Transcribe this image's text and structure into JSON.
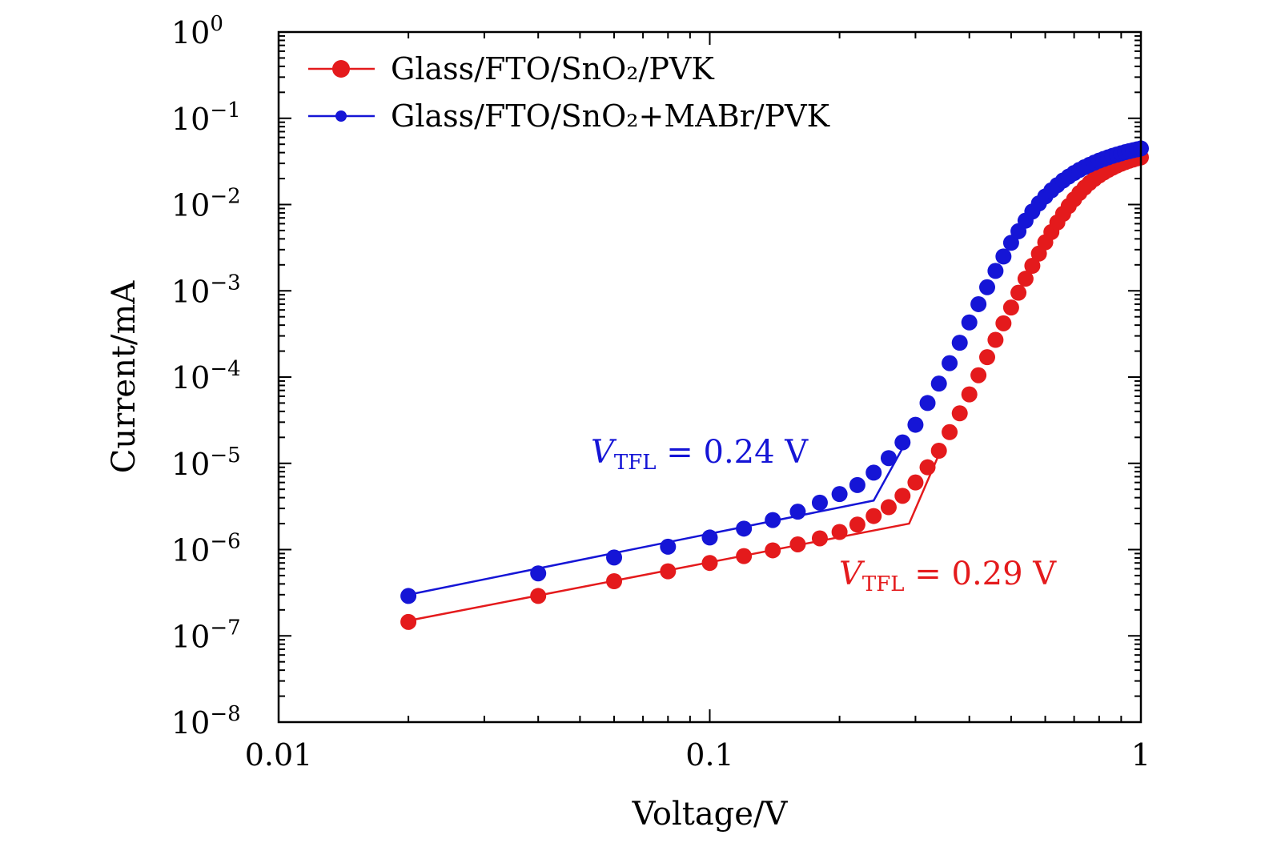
{
  "chart_data": {
    "type": "scatter",
    "xlabel": "Voltage/V",
    "ylabel": "Current/mA",
    "xscale": "log",
    "yscale": "log",
    "xlim": [
      0.01,
      1
    ],
    "ylim": [
      1e-08,
      1
    ],
    "x_tick_labels": [
      "0.01",
      "0.1",
      "1"
    ],
    "y_tick_labels": [
      {
        "base": "10",
        "exp": "0"
      },
      {
        "base": "10",
        "exp": "−1"
      },
      {
        "base": "10",
        "exp": "−2"
      },
      {
        "base": "10",
        "exp": "−3"
      },
      {
        "base": "10",
        "exp": "−4"
      },
      {
        "base": "10",
        "exp": "−5"
      },
      {
        "base": "10",
        "exp": "−6"
      },
      {
        "base": "10",
        "exp": "−7"
      },
      {
        "base": "10",
        "exp": "−8"
      }
    ],
    "legend_position": "top-left",
    "series": [
      {
        "name": "Glass/FTO/SnO₂/PVK",
        "color": "#e41a1c",
        "marker": "circle",
        "x": [
          0.02,
          0.04,
          0.06,
          0.08,
          0.1,
          0.12,
          0.14,
          0.16,
          0.18,
          0.2,
          0.22,
          0.24,
          0.26,
          0.28,
          0.3,
          0.32,
          0.34,
          0.36,
          0.38,
          0.4,
          0.42,
          0.44,
          0.46,
          0.48,
          0.5,
          0.52,
          0.54,
          0.56,
          0.58,
          0.6,
          0.62,
          0.64,
          0.66,
          0.68,
          0.7,
          0.72,
          0.74,
          0.76,
          0.78,
          0.8,
          0.82,
          0.84,
          0.86,
          0.88,
          0.9,
          0.92,
          0.94,
          0.96,
          0.98,
          1.0
        ],
        "y": [
          1.45e-07,
          2.9e-07,
          4.3e-07,
          5.6e-07,
          7e-07,
          8.4e-07,
          9.8e-07,
          1.15e-06,
          1.35e-06,
          1.6e-06,
          1.95e-06,
          2.45e-06,
          3.1e-06,
          4.2e-06,
          6e-06,
          9e-06,
          1.4e-05,
          2.3e-05,
          3.8e-05,
          6.3e-05,
          0.000105,
          0.00017,
          0.00027,
          0.00042,
          0.00064,
          0.00095,
          0.00138,
          0.00195,
          0.0027,
          0.00365,
          0.0048,
          0.0062,
          0.0078,
          0.0096,
          0.0115,
          0.0136,
          0.0157,
          0.0178,
          0.0198,
          0.0217,
          0.0235,
          0.0252,
          0.0268,
          0.0283,
          0.0297,
          0.031,
          0.0322,
          0.0333,
          0.0343,
          0.0352
        ]
      },
      {
        "name": "Glass/FTO/SnO₂+MABr/PVK",
        "color": "#1515d6",
        "marker": "circle",
        "x": [
          0.02,
          0.04,
          0.06,
          0.08,
          0.1,
          0.12,
          0.14,
          0.16,
          0.18,
          0.2,
          0.22,
          0.24,
          0.26,
          0.28,
          0.3,
          0.32,
          0.34,
          0.36,
          0.38,
          0.4,
          0.42,
          0.44,
          0.46,
          0.48,
          0.5,
          0.52,
          0.54,
          0.56,
          0.58,
          0.6,
          0.62,
          0.64,
          0.66,
          0.68,
          0.7,
          0.72,
          0.74,
          0.76,
          0.78,
          0.8,
          0.82,
          0.84,
          0.86,
          0.88,
          0.9,
          0.92,
          0.94,
          0.96,
          0.98,
          1.0
        ],
        "y": [
          2.9e-07,
          5.3e-07,
          8.1e-07,
          1.08e-06,
          1.38e-06,
          1.75e-06,
          2.2e-06,
          2.75e-06,
          3.5e-06,
          4.4e-06,
          5.6e-06,
          7.8e-06,
          1.15e-05,
          1.75e-05,
          2.8e-05,
          5e-05,
          8.4e-05,
          0.000145,
          0.00025,
          0.00043,
          0.0007,
          0.0011,
          0.0017,
          0.0025,
          0.0036,
          0.0049,
          0.0065,
          0.0083,
          0.0103,
          0.0124,
          0.0146,
          0.0168,
          0.019,
          0.0211,
          0.0232,
          0.0252,
          0.0271,
          0.0289,
          0.0306,
          0.0323,
          0.0338,
          0.0353,
          0.0367,
          0.038,
          0.0393,
          0.0405,
          0.0416,
          0.0427,
          0.0437,
          0.0447
        ]
      }
    ],
    "fit_lines": [
      {
        "series": "Glass/FTO/SnO₂/PVK",
        "color": "#e41a1c",
        "x": [
          0.02,
          0.29,
          0.345
        ],
        "y": [
          1.5e-07,
          2e-06,
          1.5e-05
        ]
      },
      {
        "series": "Glass/FTO/SnO₂+MABr/PVK",
        "color": "#1515d6",
        "x": [
          0.02,
          0.24,
          0.28
        ],
        "y": [
          3e-07,
          3.7e-06,
          1.5e-05
        ]
      }
    ],
    "annotations": [
      {
        "italic": "V",
        "subscript": "TFL",
        "text": " = 0.24 V",
        "color": "#1515d6"
      },
      {
        "italic": "V",
        "subscript": "TFL",
        "text": " = 0.29 V",
        "color": "#e41a1c"
      }
    ]
  }
}
